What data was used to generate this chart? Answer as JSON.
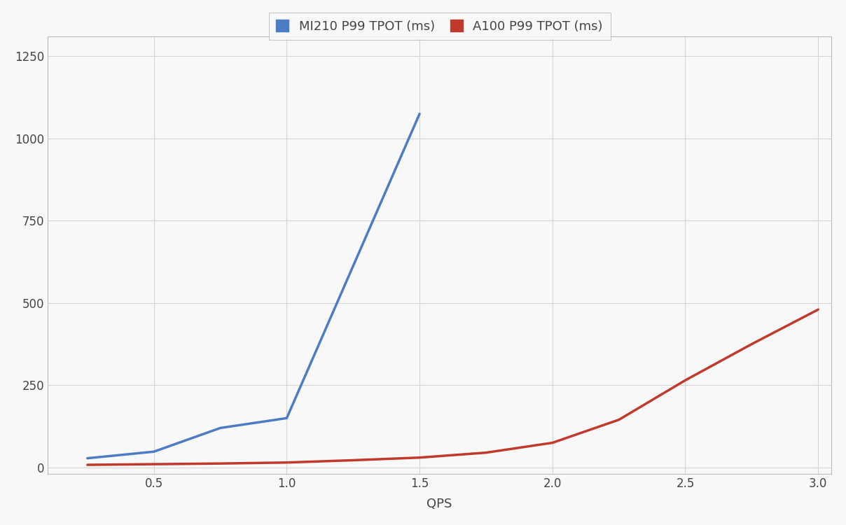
{
  "mi210_x": [
    0.25,
    0.5,
    0.75,
    1.0,
    1.5
  ],
  "mi210_y": [
    28,
    48,
    120,
    150,
    1075
  ],
  "a100_x": [
    0.25,
    0.5,
    0.75,
    1.0,
    1.25,
    1.5,
    1.75,
    2.0,
    2.25,
    2.5,
    2.75,
    3.0
  ],
  "a100_y": [
    8,
    10,
    12,
    15,
    22,
    30,
    45,
    75,
    145,
    265,
    375,
    480
  ],
  "mi210_label": "MI210 P99 TPOT (ms)",
  "a100_label": "A100 P99 TPOT (ms)",
  "mi210_color": "#4B7CC4",
  "a100_color": "#C0392B",
  "xlabel": "QPS",
  "xlim": [
    0.1,
    3.05
  ],
  "ylim": [
    -20,
    1310
  ],
  "yticks": [
    0,
    250,
    500,
    750,
    1000,
    1250
  ],
  "xticks": [
    0.5,
    1.0,
    1.5,
    2.0,
    2.5,
    3.0
  ],
  "grid_color": "#D5D5D5",
  "background_color": "#F8F8F8",
  "plot_bg_color": "#F8F8F8",
  "border_color": "#BBBBBB",
  "legend_fontsize": 13,
  "axis_fontsize": 13,
  "tick_fontsize": 12,
  "line_width": 2.5,
  "figsize": [
    12.08,
    7.5
  ],
  "dpi": 100
}
